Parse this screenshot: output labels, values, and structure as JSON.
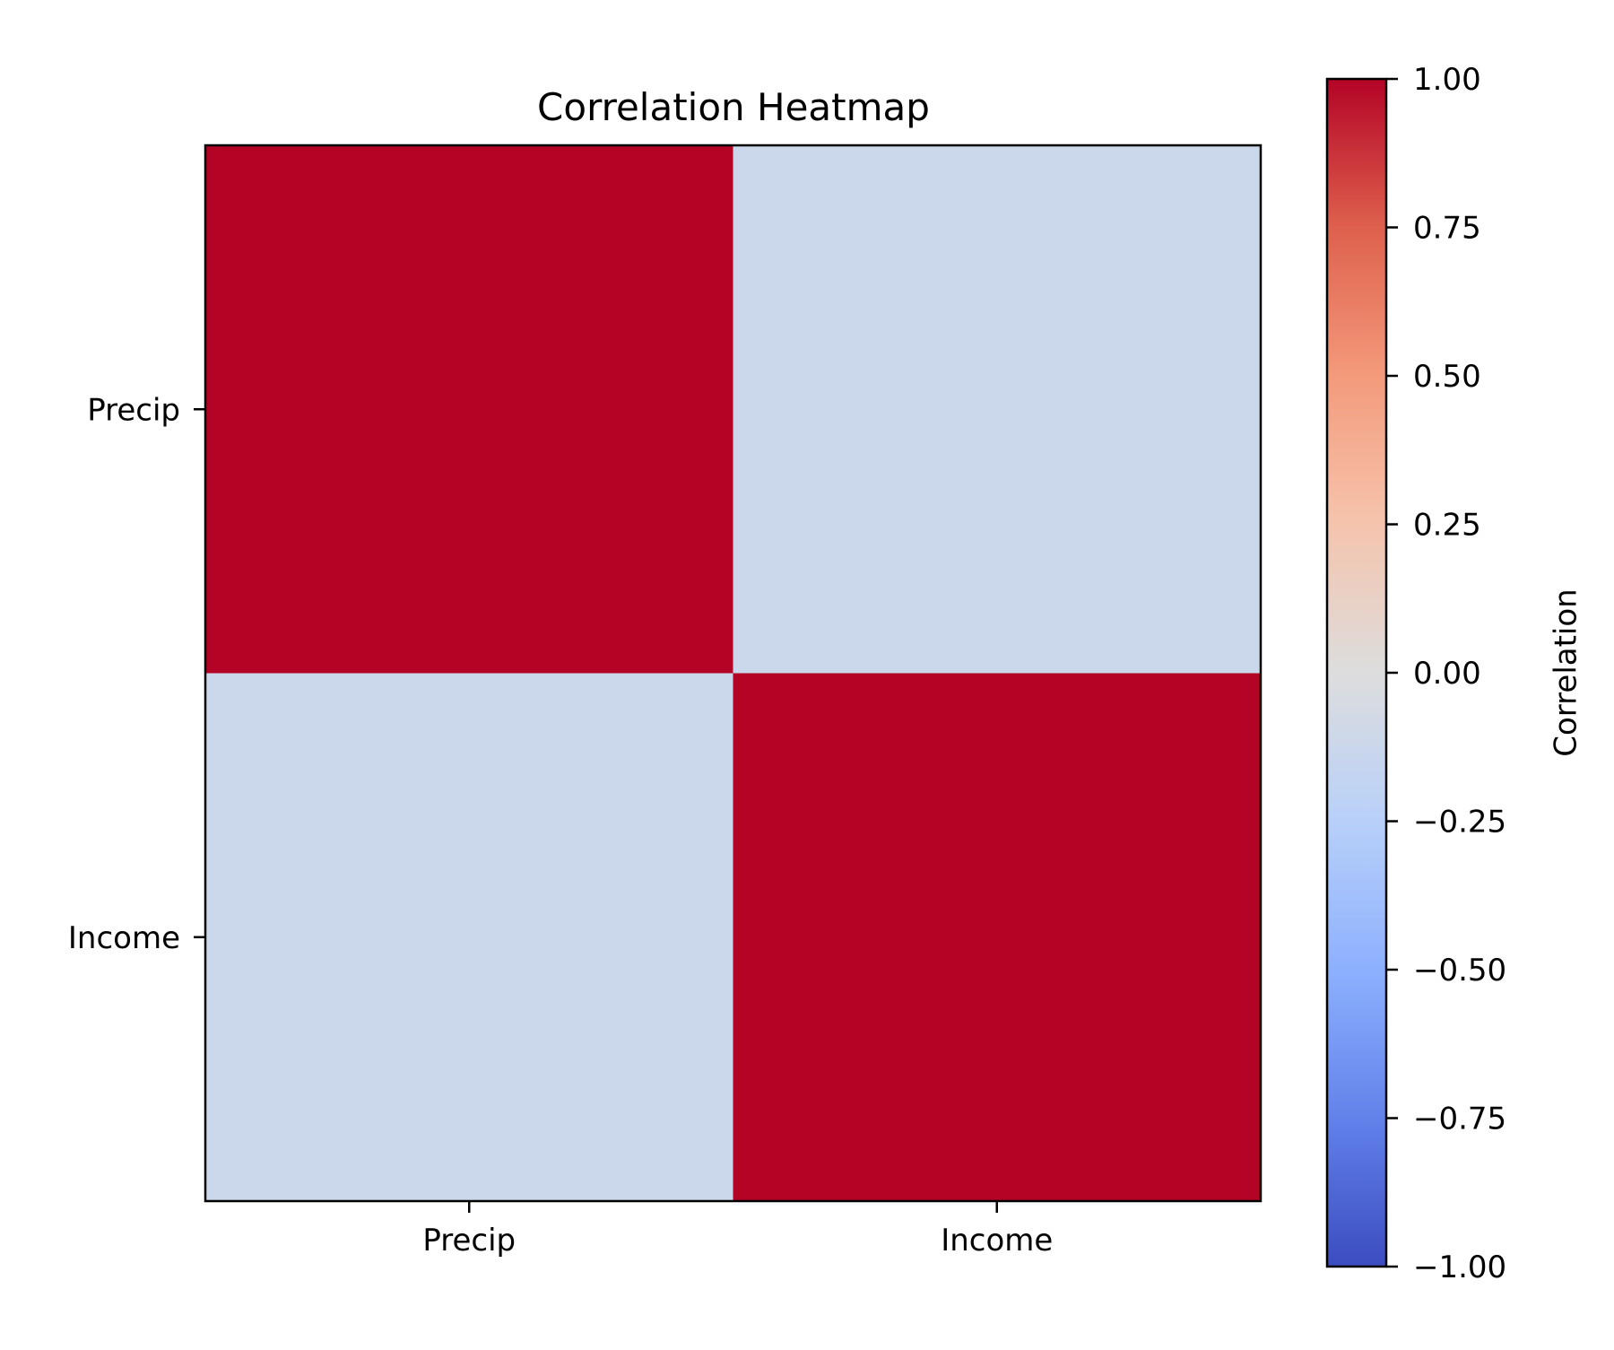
{
  "chart_data": {
    "type": "heatmap",
    "title": "Correlation Heatmap",
    "x_categories": [
      "Precip",
      "Income"
    ],
    "y_categories": [
      "Precip",
      "Income"
    ],
    "values": [
      [
        1.0,
        -0.12
      ],
      [
        -0.12,
        1.0
      ]
    ],
    "colormap": "coolwarm",
    "colorbar": {
      "label": "Correlation",
      "range": [
        -1.0,
        1.0
      ],
      "ticks": [
        1.0,
        0.75,
        0.5,
        0.25,
        0.0,
        -0.25,
        -0.5,
        -0.75,
        -1.0
      ],
      "tick_labels": [
        "1.00",
        "0.75",
        "0.50",
        "0.25",
        "0.00",
        "−0.25",
        "−0.50",
        "−0.75",
        "−1.00"
      ],
      "placement": "right"
    },
    "grid": false
  }
}
